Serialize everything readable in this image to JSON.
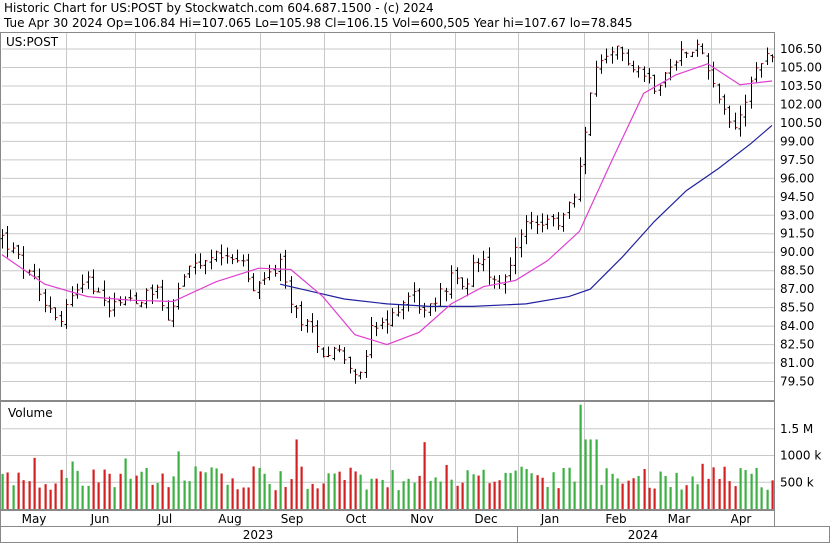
{
  "header": {
    "line1": "Historic Chart for US:POST by Stockwatch.com 604.687.1500 - (c) 2024",
    "line2": "Tue Apr 30 2024   Op=106.84   Hi=107.065   Lo=105.98   Cl=106.15   Vol=600,505   Year hi=107.67   lo=78.845"
  },
  "price_panel": {
    "symbol": "US:POST"
  },
  "volume_panel": {
    "title": "Volume"
  },
  "colors": {
    "up_volume": "#3cb043",
    "down_volume": "#d42020",
    "ma_short": "#e040d0",
    "ma_long": "#2020a0",
    "price_bar": "#000000",
    "grid": "#c8c8c8"
  },
  "chart_data": {
    "type": "ohlc",
    "title": "",
    "price_axis": {
      "ticks": [
        "106.50",
        "105.00",
        "103.50",
        "102.00",
        "100.50",
        "99.00",
        "97.50",
        "96.00",
        "94.50",
        "93.00",
        "91.50",
        "90.00",
        "88.50",
        "87.00",
        "85.50",
        "84.00",
        "82.50",
        "81.00",
        "79.50"
      ],
      "ylim": [
        78.0,
        107.8
      ]
    },
    "volume_axis": {
      "ticks": [
        "1.5 M",
        "1000 k",
        "500 k"
      ],
      "values": [
        1500000,
        1000000,
        500000
      ],
      "ylim": [
        0,
        2000000
      ]
    },
    "months": [
      "May",
      "Jun",
      "Jul",
      "Aug",
      "Sep",
      "Oct",
      "Nov",
      "Dec",
      "Jan",
      "Feb",
      "Mar",
      "Apr"
    ],
    "years": [
      "2023",
      "2024"
    ],
    "price_path": [
      {
        "d": 0,
        "c": 91.2
      },
      {
        "d": 8,
        "c": 89.3
      },
      {
        "d": 16,
        "c": 87.2
      },
      {
        "d": 22,
        "c": 85.6
      },
      {
        "d": 28,
        "c": 84.6
      },
      {
        "d": 34,
        "c": 87.4
      },
      {
        "d": 40,
        "c": 87.8
      },
      {
        "d": 48,
        "c": 85.6
      },
      {
        "d": 56,
        "c": 86.3
      },
      {
        "d": 64,
        "c": 86.2
      },
      {
        "d": 72,
        "c": 87.3
      },
      {
        "d": 78,
        "c": 84.5
      },
      {
        "d": 84,
        "c": 88.0
      },
      {
        "d": 92,
        "c": 88.9
      },
      {
        "d": 100,
        "c": 89.6
      },
      {
        "d": 106,
        "c": 90.1
      },
      {
        "d": 112,
        "c": 89.2
      },
      {
        "d": 118,
        "c": 86.6
      },
      {
        "d": 124,
        "c": 88.3
      },
      {
        "d": 130,
        "c": 88.9
      },
      {
        "d": 134,
        "c": 86.2
      },
      {
        "d": 140,
        "c": 84.6
      },
      {
        "d": 146,
        "c": 83.4
      },
      {
        "d": 150,
        "c": 81.8
      },
      {
        "d": 155,
        "c": 82.3
      },
      {
        "d": 162,
        "c": 81.2
      },
      {
        "d": 168,
        "c": 79.6
      },
      {
        "d": 172,
        "c": 83.6
      },
      {
        "d": 180,
        "c": 84.1
      },
      {
        "d": 186,
        "c": 85.9
      },
      {
        "d": 192,
        "c": 86.8
      },
      {
        "d": 198,
        "c": 84.8
      },
      {
        "d": 204,
        "c": 86.4
      },
      {
        "d": 210,
        "c": 87.9
      },
      {
        "d": 216,
        "c": 87.1
      },
      {
        "d": 222,
        "c": 89.6
      },
      {
        "d": 228,
        "c": 88.4
      },
      {
        "d": 234,
        "c": 87.6
      },
      {
        "d": 240,
        "c": 90.6
      },
      {
        "d": 248,
        "c": 92.8
      },
      {
        "d": 254,
        "c": 92.1
      },
      {
        "d": 260,
        "c": 92.4
      },
      {
        "d": 266,
        "c": 94.1
      },
      {
        "d": 268,
        "c": 94.2
      },
      {
        "d": 272,
        "c": 99.0
      },
      {
        "d": 276,
        "c": 104.6
      },
      {
        "d": 282,
        "c": 105.3
      },
      {
        "d": 288,
        "c": 106.4
      },
      {
        "d": 294,
        "c": 105.5
      },
      {
        "d": 300,
        "c": 104.5
      },
      {
        "d": 306,
        "c": 103.4
      },
      {
        "d": 312,
        "c": 104.8
      },
      {
        "d": 318,
        "c": 106.4
      },
      {
        "d": 324,
        "c": 106.9
      },
      {
        "d": 330,
        "c": 105.2
      },
      {
        "d": 336,
        "c": 101.8
      },
      {
        "d": 342,
        "c": 100.3
      },
      {
        "d": 346,
        "c": 101.5
      },
      {
        "d": 350,
        "c": 104.2
      },
      {
        "d": 356,
        "c": 105.8
      },
      {
        "d": 360,
        "c": 106.2
      }
    ],
    "ma_short_path": [
      {
        "d": 0,
        "c": 89.8
      },
      {
        "d": 20,
        "c": 87.4
      },
      {
        "d": 40,
        "c": 86.4
      },
      {
        "d": 60,
        "c": 86.1
      },
      {
        "d": 80,
        "c": 86.0
      },
      {
        "d": 100,
        "c": 87.6
      },
      {
        "d": 120,
        "c": 88.7
      },
      {
        "d": 135,
        "c": 88.6
      },
      {
        "d": 150,
        "c": 86.4
      },
      {
        "d": 165,
        "c": 83.3
      },
      {
        "d": 180,
        "c": 82.5
      },
      {
        "d": 195,
        "c": 83.5
      },
      {
        "d": 210,
        "c": 85.8
      },
      {
        "d": 225,
        "c": 87.2
      },
      {
        "d": 240,
        "c": 87.7
      },
      {
        "d": 255,
        "c": 89.3
      },
      {
        "d": 270,
        "c": 91.7
      },
      {
        "d": 285,
        "c": 97.4
      },
      {
        "d": 300,
        "c": 102.9
      },
      {
        "d": 315,
        "c": 104.4
      },
      {
        "d": 330,
        "c": 105.3
      },
      {
        "d": 345,
        "c": 103.6
      },
      {
        "d": 360,
        "c": 103.9
      }
    ],
    "ma_long_path": [
      {
        "d": 130,
        "c": 87.4
      },
      {
        "d": 145,
        "c": 86.8
      },
      {
        "d": 160,
        "c": 86.2
      },
      {
        "d": 180,
        "c": 85.8
      },
      {
        "d": 200,
        "c": 85.6
      },
      {
        "d": 220,
        "c": 85.6
      },
      {
        "d": 245,
        "c": 85.8
      },
      {
        "d": 265,
        "c": 86.4
      },
      {
        "d": 275,
        "c": 87.0
      },
      {
        "d": 290,
        "c": 89.6
      },
      {
        "d": 305,
        "c": 92.5
      },
      {
        "d": 320,
        "c": 95.0
      },
      {
        "d": 335,
        "c": 96.8
      },
      {
        "d": 350,
        "c": 98.8
      },
      {
        "d": 360,
        "c": 100.3
      }
    ]
  }
}
